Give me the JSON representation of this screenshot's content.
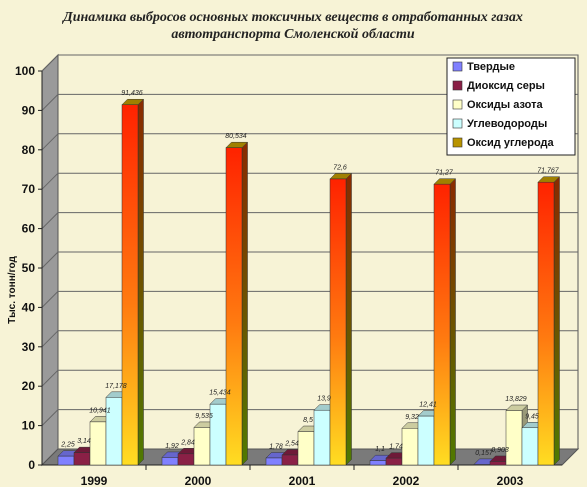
{
  "chart_data": {
    "type": "bar",
    "title": "Динамика выбросов основных токсичных веществ в отработанных газах автотранспорта Смоленской области",
    "title_lines": [
      "Динамика выбросов основных токсичных веществ в отработанных газах",
      "автотранспорта Смоленской области"
    ],
    "ylabel": "Тыс. тонн/год",
    "xlabel": "",
    "ylim": [
      0,
      100
    ],
    "yticks": [
      "0",
      "10",
      "20",
      "30",
      "40",
      "50",
      "60",
      "70",
      "80",
      "90",
      "100"
    ],
    "categories": [
      "1999",
      "2000",
      "2001",
      "2002",
      "2003"
    ],
    "legend_position": "top-right",
    "grid": true,
    "series": [
      {
        "name": "Твердые",
        "color": "#8080ff",
        "values": [
          2.25,
          1.92,
          1.78,
          1.1,
          0.157
        ],
        "labels": [
          "2,25",
          "1,92",
          "1,78",
          "1,1",
          "0,157"
        ]
      },
      {
        "name": "Диоксид серы",
        "color": "#8a2046",
        "values": [
          3.14,
          2.84,
          2.54,
          1.74,
          0.903
        ],
        "labels": [
          "3,14",
          "2,84",
          "2,54",
          "1,74",
          "0,903"
        ]
      },
      {
        "name": "Оксиды азота",
        "color": "#ffffc8",
        "values": [
          10.941,
          9.535,
          8.5,
          9.32,
          13.829
        ],
        "labels": [
          "10,941",
          "9,535",
          "8,5",
          "9,32",
          "13,829"
        ]
      },
      {
        "name": "Углеводороды",
        "color": "#ccffff",
        "values": [
          17.178,
          15.434,
          13.9,
          12.41,
          9.45
        ],
        "labels": [
          "17,178",
          "15,434",
          "13,9",
          "12,41",
          "9,45"
        ]
      },
      {
        "name": "Оксид углерода",
        "color": "#ff3300",
        "values": [
          91.436,
          80.534,
          72.6,
          71.27,
          71.767
        ],
        "labels": [
          "91,436",
          "80,534",
          "72,6",
          "71,27",
          "71,767"
        ]
      }
    ]
  }
}
